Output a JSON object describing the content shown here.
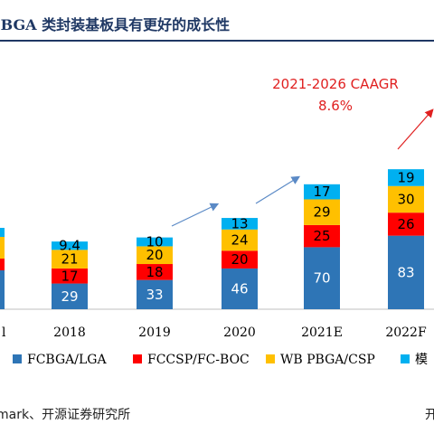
{
  "title": "-BGA 类封装基板具有更好的成长性",
  "source": "mark、开源证券研究所",
  "source_right": "开",
  "colors": {
    "FCBGA": "#2e75b6",
    "FCCSP": "#ff0000",
    "WB": "#ffc000",
    "module": "#00b0f0",
    "title": "#1f3864"
  },
  "annotation": {
    "line1": "2021-2026 CAAGR",
    "line2": "8.6%"
  },
  "chart_data": {
    "type": "bar",
    "stacked": true,
    "categories": [
      "2018",
      "2019",
      "2020",
      "2021E",
      "2022F"
    ],
    "series": [
      {
        "name": "FCBGA/LGA",
        "color": "#2e75b6",
        "values": [
          29,
          33,
          46,
          70,
          83
        ]
      },
      {
        "name": "FCCSP/FC-BOC",
        "color": "#ff0000",
        "values": [
          17,
          18,
          20,
          25,
          26
        ]
      },
      {
        "name": "WB PBGA/CSP",
        "color": "#ffc000",
        "values": [
          21,
          20,
          24,
          29,
          30
        ]
      },
      {
        "name": "模",
        "color": "#00b0f0",
        "values": [
          9.4,
          10,
          13,
          17,
          19
        ]
      }
    ],
    "value_labels": [
      [
        "29",
        "33",
        "46",
        "70",
        "83"
      ],
      [
        "17",
        "18",
        "20",
        "25",
        "26"
      ],
      [
        "21",
        "20",
        "24",
        "29",
        "30"
      ],
      [
        "9.4",
        "10",
        "13",
        "17",
        "19"
      ]
    ],
    "partial_left_tick": "l",
    "ylim": [
      0,
      160
    ],
    "legend_position": "bottom"
  }
}
